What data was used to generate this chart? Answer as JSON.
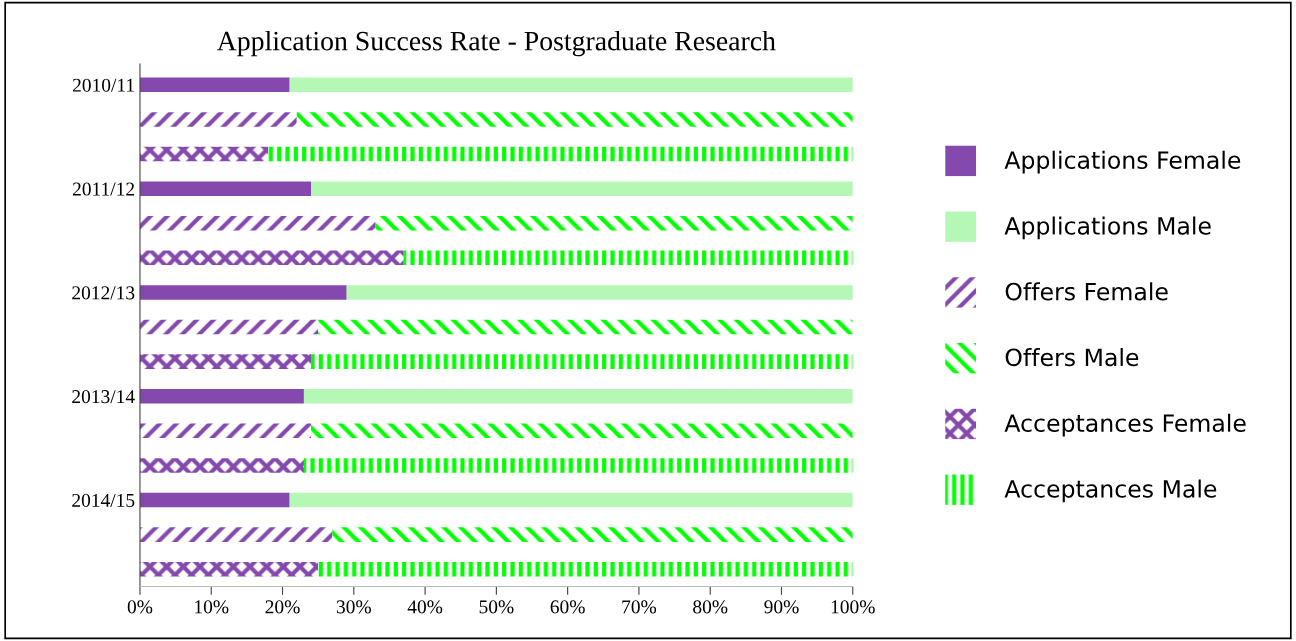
{
  "chart_data": {
    "type": "bar",
    "orientation": "horizontal",
    "stacked": true,
    "title": "Application Success Rate - Postgraduate Research",
    "categories": [
      "2010/11",
      null,
      null,
      "2011/12",
      null,
      null,
      "2012/13",
      null,
      null,
      "2013/14",
      null,
      null,
      "2014/15",
      null,
      null
    ],
    "series": [
      {
        "name": "Applications Female",
        "color": "#8549ad",
        "values": [
          21,
          null,
          null,
          24,
          null,
          null,
          29,
          null,
          null,
          23,
          null,
          null,
          21,
          null,
          null
        ]
      },
      {
        "name": "Applications Male",
        "color": "#b5f7b5",
        "values": [
          79,
          null,
          null,
          76,
          null,
          null,
          71,
          null,
          null,
          77,
          null,
          null,
          79,
          null,
          null
        ]
      },
      {
        "name": "Offers Female",
        "color": "#8549ad",
        "values": [
          null,
          22,
          null,
          null,
          33,
          null,
          null,
          25,
          null,
          null,
          24,
          null,
          null,
          27,
          null
        ]
      },
      {
        "name": "Offers Male",
        "color": "#00ff00",
        "values": [
          null,
          78,
          null,
          null,
          67,
          null,
          null,
          75,
          null,
          null,
          76,
          null,
          null,
          73,
          null
        ]
      },
      {
        "name": "Acceptances Female",
        "color": "#8549ad",
        "values": [
          null,
          null,
          18,
          null,
          null,
          37,
          null,
          null,
          24,
          null,
          null,
          23,
          null,
          null,
          25
        ]
      },
      {
        "name": "Acceptances Male",
        "color": "#00ff00",
        "values": [
          null,
          null,
          82,
          null,
          null,
          63,
          null,
          null,
          76,
          null,
          null,
          77,
          null,
          null,
          75
        ]
      }
    ],
    "xlim": [
      0,
      100
    ],
    "xticks": [
      {
        "value": 0,
        "label": "0%"
      },
      {
        "value": 10,
        "label": "10%"
      },
      {
        "value": 20,
        "label": "20%"
      },
      {
        "value": 30,
        "label": "30%"
      },
      {
        "value": 40,
        "label": "40%"
      },
      {
        "value": 50,
        "label": "50%"
      },
      {
        "value": 60,
        "label": "60%"
      },
      {
        "value": 70,
        "label": "70%"
      },
      {
        "value": 80,
        "label": "80%"
      },
      {
        "value": 90,
        "label": "90%"
      },
      {
        "value": 100,
        "label": "100%"
      }
    ],
    "legend": "right"
  }
}
